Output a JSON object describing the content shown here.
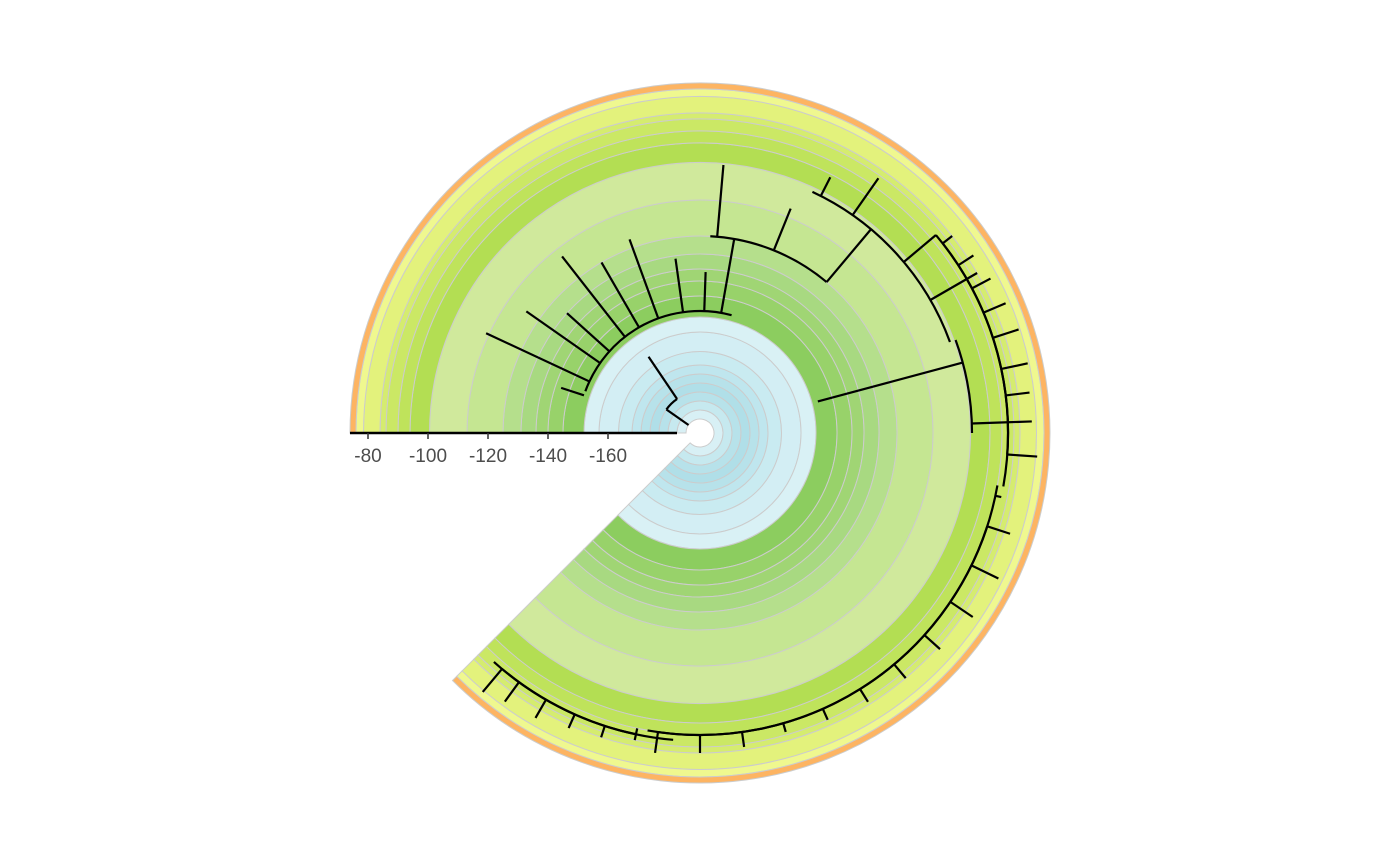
{
  "chart_data": {
    "type": "circular-phylogeny",
    "title": "",
    "xlabel": "",
    "ylabel": "",
    "time_axis": {
      "ticks": [
        -80,
        -100,
        -120,
        -140,
        -160
      ],
      "tick_labels": [
        "-80",
        "-100",
        "-120",
        "-140",
        "-160"
      ],
      "range": [
        -186,
        -74
      ]
    },
    "time_bands": [
      {
        "from": -186,
        "to": -183,
        "color": "#d8f0f5"
      },
      {
        "from": -183,
        "to": -180,
        "color": "#c6e9ef"
      },
      {
        "from": -180,
        "to": -177,
        "color": "#b7e2ea"
      },
      {
        "from": -177,
        "to": -174,
        "color": "#b0dfe8"
      },
      {
        "from": -174,
        "to": -171,
        "color": "#b7e2ea"
      },
      {
        "from": -171,
        "to": -168,
        "color": "#bfe6ee"
      },
      {
        "from": -168,
        "to": -163.5,
        "color": "#c9ebf1"
      },
      {
        "from": -163.5,
        "to": -157,
        "color": "#d3eef4"
      },
      {
        "from": -157,
        "to": -152,
        "color": "#d9f1f5"
      },
      {
        "from": -152,
        "to": -145,
        "color": "#8ccd5f"
      },
      {
        "from": -145,
        "to": -140,
        "color": "#98d26a"
      },
      {
        "from": -140,
        "to": -136,
        "color": "#a0d574"
      },
      {
        "from": -136,
        "to": -131,
        "color": "#a8d981"
      },
      {
        "from": -131,
        "to": -125,
        "color": "#b5df8c"
      },
      {
        "from": -125,
        "to": -113,
        "color": "#c5e692"
      },
      {
        "from": -113,
        "to": -100.5,
        "color": "#d0e99c"
      },
      {
        "from": -100.5,
        "to": -94,
        "color": "#b3de53"
      },
      {
        "from": -94,
        "to": -90,
        "color": "#bfe35b"
      },
      {
        "from": -90,
        "to": -86,
        "color": "#cbe865"
      },
      {
        "from": -86,
        "to": -84,
        "color": "#d5ec6f"
      },
      {
        "from": -84,
        "to": -78.5,
        "color": "#e3f27c"
      },
      {
        "from": -78.5,
        "to": -76,
        "color": "#eff88f"
      },
      {
        "from": -76,
        "to": -74,
        "color": "#fdb462"
      }
    ]
  }
}
